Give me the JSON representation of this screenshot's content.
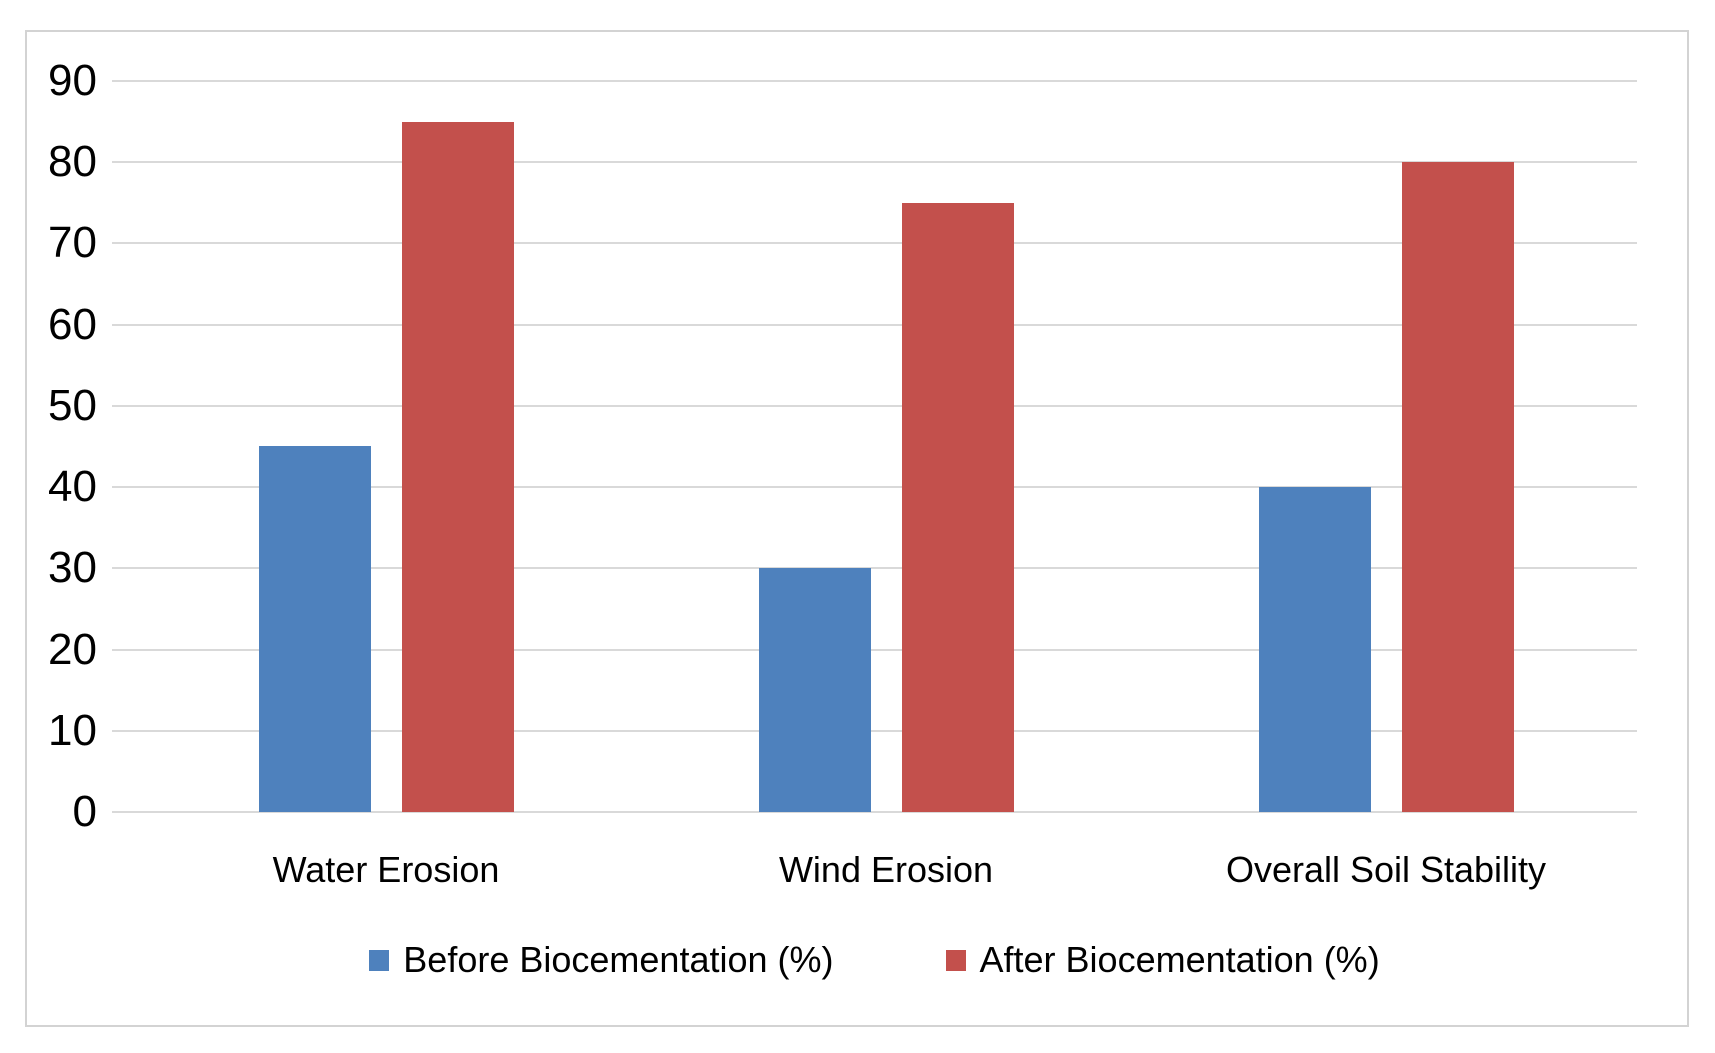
{
  "chart_data": {
    "type": "bar",
    "title": "",
    "categories": [
      "Water Erosion",
      "Wind Erosion",
      "Overall Soil Stability"
    ],
    "series": [
      {
        "name": "Before Biocementation (%)",
        "color": "#4E81BD",
        "values": [
          45,
          30,
          40
        ]
      },
      {
        "name": "After Biocementation (%)",
        "color": "#C3504C",
        "values": [
          85,
          75,
          80
        ]
      }
    ],
    "xlabel": "",
    "ylabel": "",
    "ylim": [
      0,
      90
    ],
    "y_ticks": [
      0,
      10,
      20,
      30,
      40,
      50,
      60,
      70,
      80,
      90
    ],
    "grid": true,
    "legend_position": "bottom",
    "colors": {
      "gridline": "#D9D9D9",
      "axis_line": "#D9D9D9",
      "frame_border": "#D3D3D3",
      "background": "#FFFFFF",
      "text": "#000000"
    }
  }
}
